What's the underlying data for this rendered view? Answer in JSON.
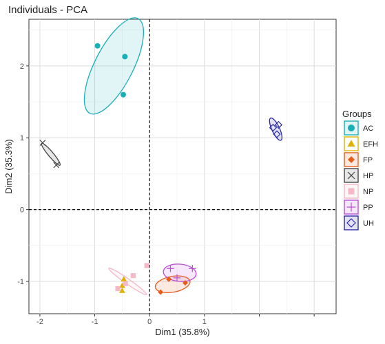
{
  "chart_data": {
    "type": "scatter",
    "title": "Individuals - PCA",
    "xlabel": "Dim1 (35.8%)",
    "ylabel": "Dim2 (35.3%)",
    "xlim": [
      -2.2,
      3.4
    ],
    "ylim": [
      -1.45,
      2.65
    ],
    "x_ticks": [
      -2,
      -1,
      0,
      1,
      2,
      3
    ],
    "y_ticks": [
      -1,
      0,
      1,
      2
    ],
    "x_tick_labels": [
      "-2",
      "-1",
      "0",
      "1",
      "",
      ""
    ],
    "y_tick_labels": [
      "-1",
      "0",
      "1",
      "2"
    ],
    "grid": true,
    "reference_lines": {
      "x": 0,
      "y": 0,
      "style": "dashed"
    },
    "legend": {
      "title": "Groups",
      "position": "right"
    },
    "series": [
      {
        "name": "AC",
        "color": "#1aafb6",
        "marker": "circle",
        "points": [
          [
            -0.95,
            2.28
          ],
          [
            -0.45,
            2.13
          ],
          [
            -0.48,
            1.6
          ]
        ],
        "ellipse": {
          "cx": -0.65,
          "cy": 2.0,
          "rx": 0.35,
          "ry": 0.74,
          "angle": 27
        }
      },
      {
        "name": "EFH",
        "color": "#e0b000",
        "marker": "triangle",
        "points": [
          [
            -0.47,
            -0.97
          ],
          [
            -0.5,
            -1.06
          ],
          [
            -0.5,
            -1.13
          ]
        ],
        "ellipse": null
      },
      {
        "name": "FP",
        "color": "#e65c1a",
        "marker": "diamond",
        "points": [
          [
            0.2,
            -1.15
          ],
          [
            0.35,
            -0.97
          ],
          [
            0.65,
            -1.02
          ]
        ],
        "ellipse": {
          "cx": 0.42,
          "cy": -1.04,
          "rx": 0.32,
          "ry": 0.11,
          "angle": -10
        }
      },
      {
        "name": "HP",
        "color": "#444444",
        "marker": "cross",
        "points": [
          [
            -1.95,
            0.93
          ],
          [
            -1.7,
            0.62
          ]
        ],
        "ellipse": {
          "cx": -1.8,
          "cy": 0.77,
          "rx": 0.26,
          "ry": 0.035,
          "angle": 50
        }
      },
      {
        "name": "NP",
        "color": "#f4b8c6",
        "marker": "square",
        "points": [
          [
            -0.05,
            -0.78
          ],
          [
            -0.58,
            -1.1
          ],
          [
            -0.44,
            -1.03
          ],
          [
            -0.3,
            -0.92
          ]
        ],
        "ellipse": {
          "cx": -0.4,
          "cy": -1.0,
          "rx": 0.42,
          "ry": 0.035,
          "angle": 35
        }
      },
      {
        "name": "PP",
        "color": "#b84fd6",
        "marker": "plus",
        "points": [
          [
            0.38,
            -0.82
          ],
          [
            0.78,
            -0.82
          ],
          [
            0.5,
            -0.95
          ]
        ],
        "ellipse": {
          "cx": 0.55,
          "cy": -0.88,
          "rx": 0.3,
          "ry": 0.12,
          "angle": 5
        }
      },
      {
        "name": "UH",
        "color": "#2a2aa8",
        "marker": "diamond-open",
        "points": [
          [
            2.25,
            1.14
          ],
          [
            2.35,
            1.18
          ],
          [
            2.32,
            1.05
          ]
        ],
        "ellipse": {
          "cx": 2.3,
          "cy": 1.12,
          "rx": 0.07,
          "ry": 0.17,
          "angle": -25
        }
      }
    ]
  }
}
